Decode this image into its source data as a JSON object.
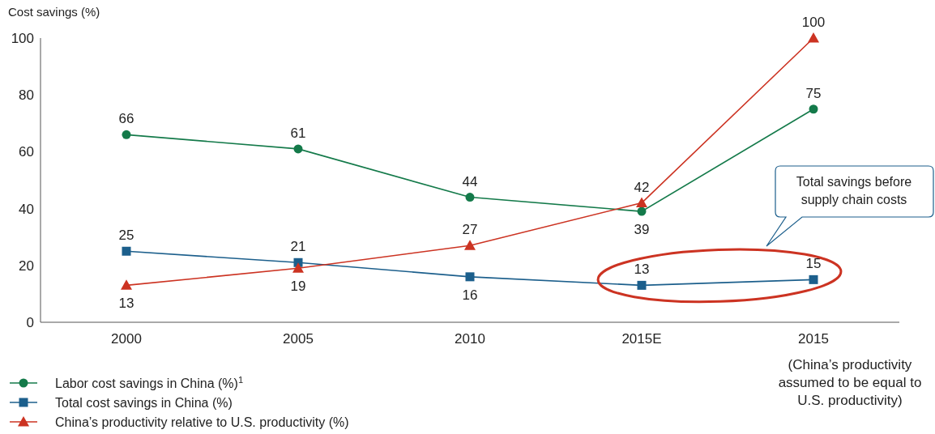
{
  "chart_data": {
    "type": "line",
    "ylabel": "Cost savings (%)",
    "categories": [
      "2000",
      "2005",
      "2010",
      "2015E",
      "2015"
    ],
    "ylim": [
      0,
      100
    ],
    "yticks": [
      0,
      20,
      40,
      60,
      80,
      100
    ],
    "grid": false,
    "legend": "bottom left",
    "data_labels": true,
    "series": [
      {
        "name": "Labor cost savings in China (%)$^{1}$",
        "color": "#147a4a",
        "marker": "circle",
        "values": [
          66,
          61,
          44,
          39,
          75
        ]
      },
      {
        "name": "Total cost savings in China (%)",
        "color": "#1c5f8c",
        "marker": "square",
        "values": [
          25,
          21,
          16,
          13,
          15
        ]
      },
      {
        "name": "China’s productivity relative to U.S. productivity (%)",
        "color": "#cc3322",
        "marker": "triangle",
        "values": [
          13,
          19,
          27,
          42,
          100
        ]
      }
    ],
    "annotations": [
      "(China’s productivity assumed to be equal to U.S. productivity)",
      "Total savings before supply chain costs"
    ]
  }
}
